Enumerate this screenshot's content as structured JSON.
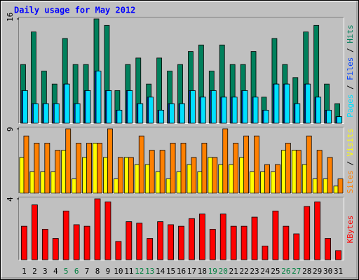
{
  "chart_data": [
    {
      "type": "bar",
      "title": "Daily usage for May 2012",
      "legend_separator": " / ",
      "ylim": [
        0,
        16
      ],
      "yticks": [
        16
      ],
      "series": [
        {
          "name": "Hits",
          "color": "#00805c",
          "values": [
            9,
            14,
            8,
            6,
            13,
            9,
            9,
            16,
            15,
            5,
            9,
            10,
            6,
            10,
            8,
            9,
            11,
            12,
            8,
            12,
            9,
            9,
            11,
            4,
            13,
            9,
            7,
            14,
            15,
            6,
            3
          ]
        },
        {
          "name": "Files",
          "color": "#0040ff",
          "values": [
            5,
            3,
            3,
            3,
            6,
            3,
            5,
            8,
            5,
            2,
            5,
            3,
            4,
            2,
            3,
            3,
            5,
            4,
            5,
            4,
            4,
            5,
            4,
            2,
            6,
            6,
            3,
            6,
            4,
            2,
            1
          ]
        },
        {
          "name": "Pages",
          "color": "#00e0ff",
          "values": [
            5,
            3,
            3,
            3,
            6,
            3,
            5,
            8,
            5,
            2,
            5,
            3,
            4,
            2,
            3,
            3,
            5,
            4,
            5,
            4,
            4,
            5,
            4,
            2,
            6,
            6,
            3,
            6,
            4,
            2,
            1
          ]
        }
      ]
    },
    {
      "type": "bar",
      "ylim": [
        0,
        9
      ],
      "yticks": [
        9
      ],
      "series": [
        {
          "name": "Visits",
          "color": "#ffff00",
          "values": [
            5,
            3,
            3,
            3,
            6,
            2,
            5,
            7,
            5,
            2,
            5,
            4,
            4,
            3,
            2,
            3,
            4,
            3,
            5,
            4,
            4,
            5,
            3,
            3,
            3,
            6,
            6,
            4,
            2,
            2,
            1
          ]
        },
        {
          "name": "Sites",
          "color": "#ff8000",
          "values": [
            8,
            7,
            7,
            6,
            9,
            7,
            7,
            7,
            9,
            5,
            5,
            8,
            6,
            6,
            7,
            7,
            5,
            7,
            5,
            9,
            7,
            8,
            8,
            4,
            4,
            7,
            6,
            8,
            6,
            5,
            2
          ]
        }
      ]
    },
    {
      "type": "bar",
      "ylim": [
        0,
        4
      ],
      "yticks": [
        4
      ],
      "categories": [
        "1",
        "2",
        "3",
        "4",
        "5",
        "6",
        "7",
        "8",
        "9",
        "10",
        "11",
        "12",
        "13",
        "14",
        "15",
        "16",
        "17",
        "18",
        "19",
        "20",
        "21",
        "22",
        "23",
        "24",
        "25",
        "26",
        "27",
        "28",
        "29",
        "30",
        "31"
      ],
      "highlight_categories": [
        "5",
        "6",
        "12",
        "13",
        "19",
        "20",
        "26",
        "27"
      ],
      "highlight_color": "#008040",
      "series": [
        {
          "name": "KBytes",
          "color": "#ff0000",
          "values": [
            2.2,
            3.6,
            2.0,
            1.4,
            3.2,
            2.3,
            2.2,
            4.0,
            3.8,
            1.2,
            2.5,
            2.4,
            1.4,
            2.5,
            2.3,
            2.2,
            2.7,
            3.0,
            2.0,
            3.0,
            2.2,
            2.2,
            2.8,
            0.9,
            3.2,
            2.2,
            1.7,
            3.5,
            3.8,
            1.4,
            0.6
          ]
        }
      ]
    }
  ]
}
